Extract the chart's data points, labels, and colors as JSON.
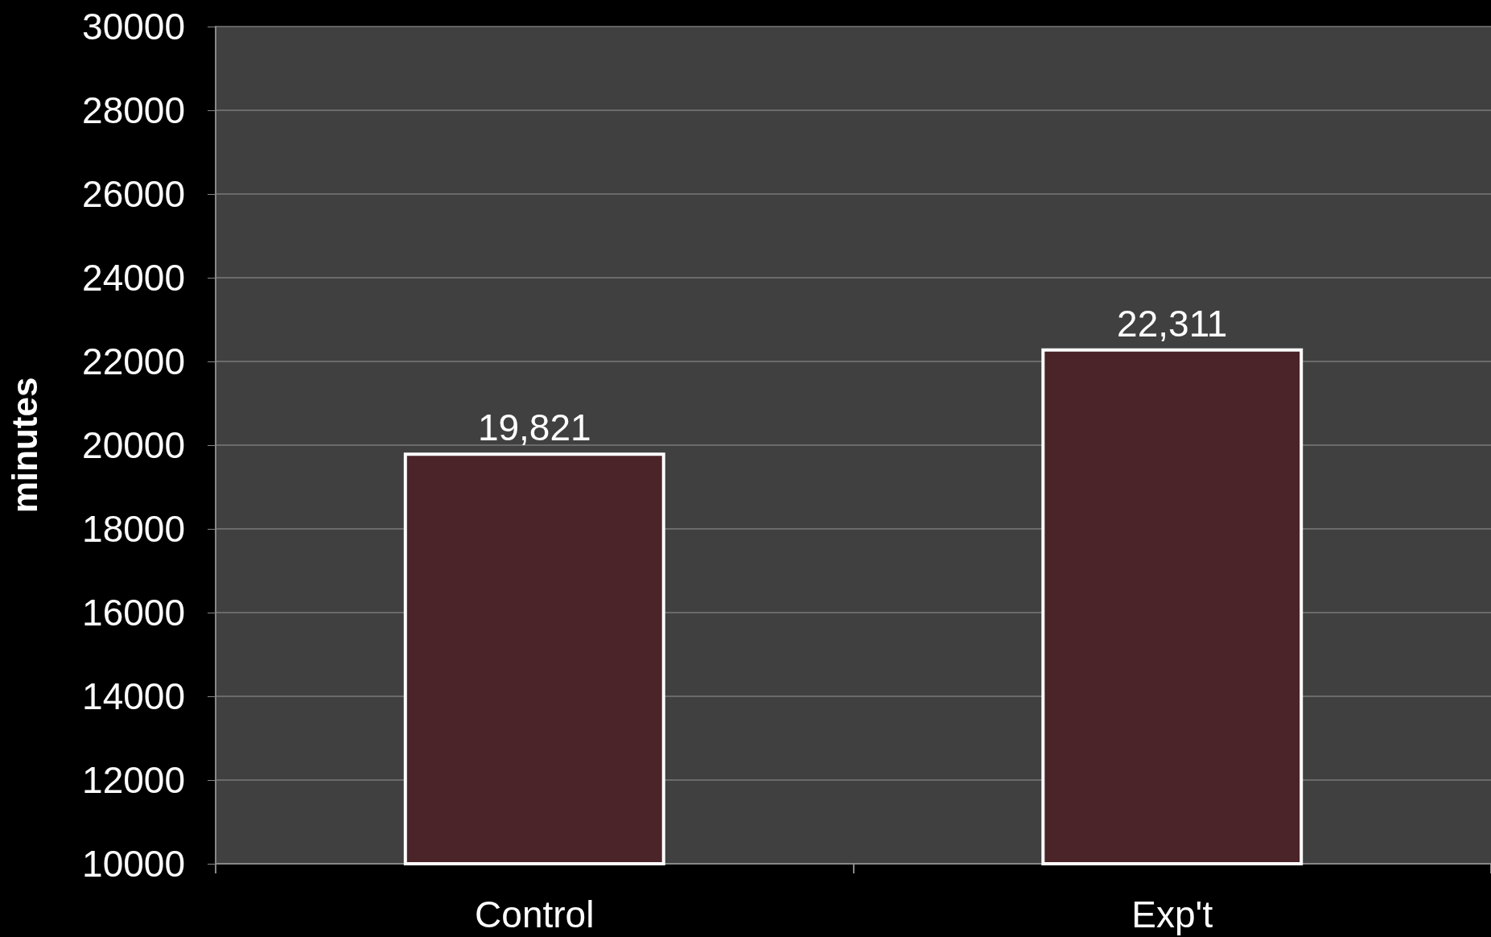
{
  "chart_data": {
    "type": "bar",
    "ylabel": "minutes",
    "categories": [
      "Control",
      "Exp't"
    ],
    "values": [
      19821,
      22311
    ],
    "value_labels": [
      "19,821",
      "22,311"
    ],
    "color": "#4a2428",
    "ylim": [
      10000,
      30000
    ],
    "yticks": [
      10000,
      12000,
      14000,
      16000,
      18000,
      20000,
      22000,
      24000,
      26000,
      28000,
      30000
    ],
    "grid": "y"
  }
}
